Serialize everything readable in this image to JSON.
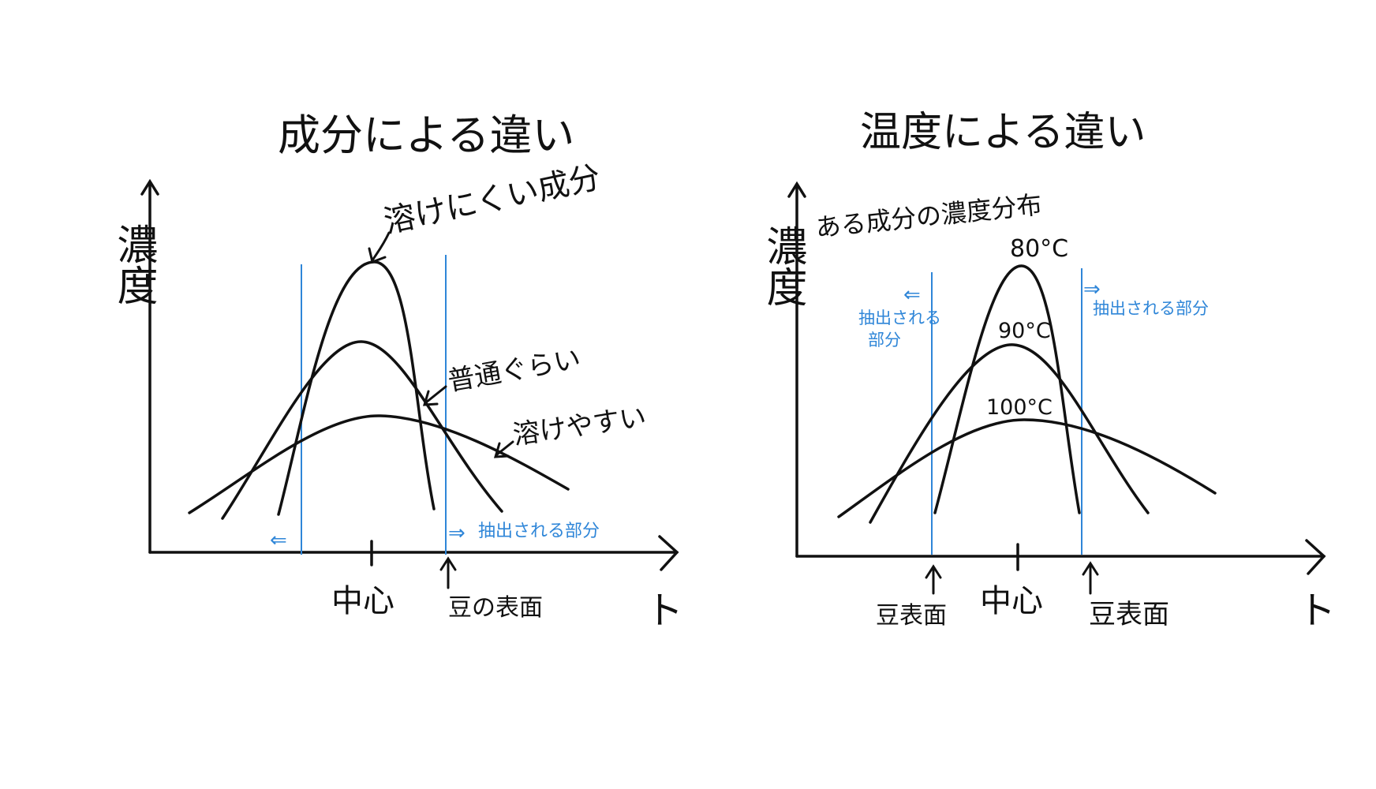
{
  "colors": {
    "ink": "#111111",
    "blue": "#2f86d8",
    "background": "#ffffff"
  },
  "left_diagram": {
    "title": "成分による違い",
    "y_axis_label": "濃度",
    "x_axis_end_label": "ト",
    "center_label": "中心",
    "surface_label": "豆の表面",
    "extract_arrow_left": "⇐",
    "extract_arrow_right": "⇒",
    "extract_label": "抽出される部分",
    "curve_labels": {
      "hard": "溶けにくい成分",
      "normal": "普通ぐらい",
      "easy": "溶けやすい"
    }
  },
  "right_diagram": {
    "title": "温度による違い",
    "subtitle": "ある成分の濃度分布",
    "y_axis_label": "濃度",
    "x_axis_end_label": "ト",
    "center_label": "中心",
    "surface_label_left": "豆表面",
    "surface_label_right": "豆表面",
    "extract_arrow_left": "⇐",
    "extract_arrow_right": "⇒",
    "extract_label_left_line1": "抽出される",
    "extract_label_left_line2": "部分",
    "extract_label_right": "抽出される部分",
    "temperature_labels": {
      "t80": "80°C",
      "t90": "90°C",
      "t100": "100°C"
    }
  }
}
